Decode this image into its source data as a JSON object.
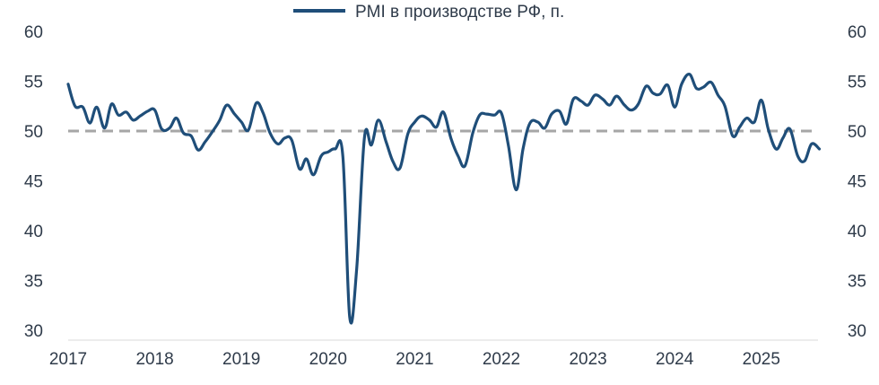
{
  "chart_data": {
    "type": "line",
    "title": "",
    "xlabel": "",
    "ylabel": "",
    "legend": {
      "position": "top-center",
      "label": "PMI в производстве РФ, п."
    },
    "ylim": [
      30,
      60
    ],
    "y_ticks_left": [
      "60",
      "55",
      "50",
      "45",
      "40",
      "35",
      "30"
    ],
    "y_ticks_right": [
      "60",
      "55",
      "50",
      "45",
      "40",
      "35",
      "30"
    ],
    "x_ticks": [
      "2017",
      "2018",
      "2019",
      "2020",
      "2021",
      "2022",
      "2023",
      "2024",
      "2025"
    ],
    "x_tick_values": [
      2017,
      2018,
      2019,
      2020,
      2021,
      2022,
      2023,
      2024,
      2025
    ],
    "x_unit": "year",
    "reference_line": {
      "y": 50,
      "style": "dashed"
    },
    "grid": "none",
    "colors": {
      "series": "#1f4e79",
      "reference": "#a6a6a6",
      "axis": "#d9d9d9"
    },
    "series": [
      {
        "name": "PMI в производстве РФ, п.",
        "x": [
          2017.0,
          2017.08,
          2017.17,
          2017.25,
          2017.33,
          2017.42,
          2017.5,
          2017.58,
          2017.67,
          2017.75,
          2017.83,
          2017.92,
          2018.0,
          2018.08,
          2018.17,
          2018.25,
          2018.33,
          2018.42,
          2018.5,
          2018.58,
          2018.67,
          2018.75,
          2018.83,
          2018.92,
          2019.0,
          2019.08,
          2019.17,
          2019.25,
          2019.33,
          2019.42,
          2019.5,
          2019.58,
          2019.67,
          2019.75,
          2019.83,
          2019.92,
          2020.0,
          2020.08,
          2020.17,
          2020.25,
          2020.33,
          2020.42,
          2020.5,
          2020.58,
          2020.67,
          2020.75,
          2020.83,
          2020.92,
          2021.0,
          2021.08,
          2021.17,
          2021.25,
          2021.33,
          2021.42,
          2021.5,
          2021.58,
          2021.67,
          2021.75,
          2021.83,
          2021.92,
          2022.0,
          2022.08,
          2022.17,
          2022.25,
          2022.33,
          2022.42,
          2022.5,
          2022.58,
          2022.67,
          2022.75,
          2022.83,
          2022.92,
          2023.0,
          2023.08,
          2023.17,
          2023.25,
          2023.33,
          2023.42,
          2023.5,
          2023.58,
          2023.67,
          2023.75,
          2023.83,
          2023.92,
          2024.0,
          2024.08,
          2024.17,
          2024.25,
          2024.33,
          2024.42,
          2024.5,
          2024.58,
          2024.67,
          2024.75,
          2024.83,
          2024.92,
          2025.0,
          2025.08,
          2025.17,
          2025.25,
          2025.33,
          2025.42,
          2025.5,
          2025.58,
          2025.67
        ],
        "values": [
          54.7,
          52.5,
          52.4,
          50.8,
          52.4,
          50.3,
          52.7,
          51.6,
          51.9,
          51.1,
          51.5,
          52.0,
          52.1,
          50.2,
          50.3,
          51.3,
          49.8,
          49.5,
          48.1,
          48.9,
          50.0,
          51.1,
          52.6,
          51.7,
          50.9,
          50.1,
          52.8,
          51.8,
          49.8,
          48.7,
          49.3,
          49.1,
          46.2,
          47.2,
          45.6,
          47.5,
          47.9,
          48.2,
          47.5,
          31.3,
          36.2,
          49.4,
          48.6,
          51.1,
          48.9,
          46.9,
          46.3,
          49.7,
          50.9,
          51.5,
          51.1,
          50.4,
          51.9,
          49.2,
          47.5,
          46.5,
          49.8,
          51.6,
          51.7,
          51.6,
          51.8,
          48.6,
          44.1,
          48.2,
          50.8,
          50.9,
          50.3,
          51.7,
          52.0,
          50.7,
          53.2,
          53.0,
          52.6,
          53.6,
          53.2,
          52.6,
          53.5,
          52.6,
          52.1,
          52.7,
          54.5,
          53.8,
          53.7,
          54.6,
          52.4,
          54.7,
          55.7,
          54.3,
          54.4,
          54.9,
          53.6,
          52.5,
          49.5,
          50.4,
          51.3,
          50.9,
          53.1,
          50.2,
          48.2,
          49.3,
          50.2,
          47.5,
          47.0,
          48.7,
          48.2
        ]
      }
    ]
  }
}
